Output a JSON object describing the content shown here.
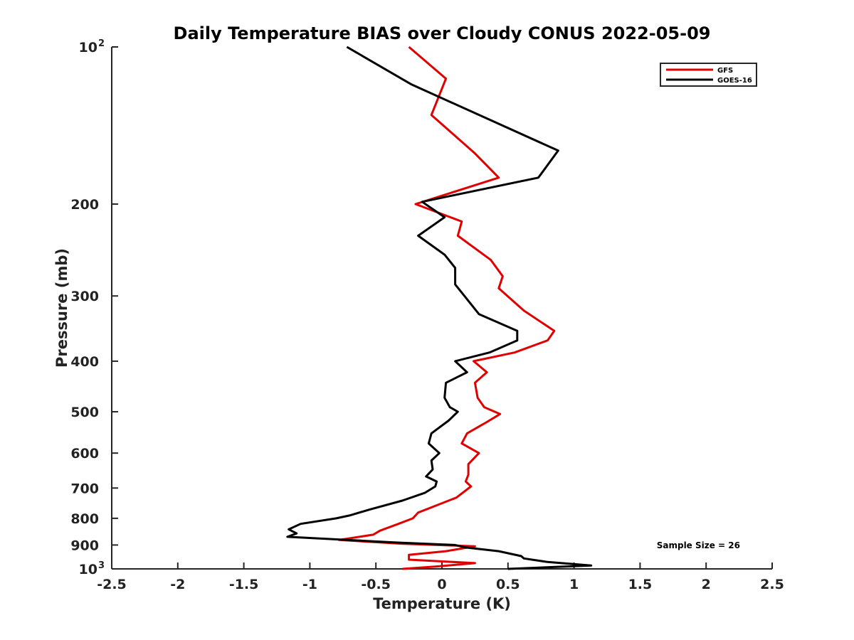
{
  "chart_data": {
    "type": "line",
    "title": "Daily Temperature BIAS over Cloudy CONUS 2022-05-09",
    "xlabel": "Temperature (K)",
    "ylabel": "Pressure (mb)",
    "xlim": [
      -2.5,
      2.5
    ],
    "ylim": [
      100,
      1000
    ],
    "yscale": "log",
    "yreverse": true,
    "grid": false,
    "legend_position": "top-right",
    "x_ticks": [
      "-2.5",
      "-2",
      "-1.5",
      "-1",
      "-0.5",
      "0",
      "0.5",
      "1",
      "1.5",
      "2",
      "2.5"
    ],
    "y_ticks": [
      {
        "value": 100,
        "label": "10",
        "sup": "2"
      },
      {
        "value": 200,
        "label": "200"
      },
      {
        "value": 300,
        "label": "300"
      },
      {
        "value": 400,
        "label": "400"
      },
      {
        "value": 500,
        "label": "500"
      },
      {
        "value": 600,
        "label": "600"
      },
      {
        "value": 700,
        "label": "700"
      },
      {
        "value": 800,
        "label": "800"
      },
      {
        "value": 900,
        "label": "900"
      },
      {
        "value": 1000,
        "label": "10",
        "sup": "3"
      }
    ],
    "annotation": "Sample Size = 26",
    "series": [
      {
        "name": "GFS",
        "color": "#e00000",
        "points": [
          [
            -0.25,
            100
          ],
          [
            0.03,
            115
          ],
          [
            -0.08,
            135
          ],
          [
            0.25,
            160
          ],
          [
            0.43,
            178
          ],
          [
            -0.2,
            200
          ],
          [
            0.15,
            216
          ],
          [
            0.12,
            230
          ],
          [
            0.37,
            256
          ],
          [
            0.46,
            275
          ],
          [
            0.43,
            290
          ],
          [
            0.62,
            320
          ],
          [
            0.85,
            350
          ],
          [
            0.8,
            365
          ],
          [
            0.55,
            385
          ],
          [
            0.24,
            400
          ],
          [
            0.34,
            420
          ],
          [
            0.25,
            440
          ],
          [
            0.27,
            470
          ],
          [
            0.32,
            490
          ],
          [
            0.44,
            505
          ],
          [
            0.33,
            525
          ],
          [
            0.19,
            550
          ],
          [
            0.15,
            575
          ],
          [
            0.28,
            600
          ],
          [
            0.2,
            630
          ],
          [
            0.2,
            660
          ],
          [
            0.18,
            680
          ],
          [
            0.22,
            695
          ],
          [
            0.11,
            730
          ],
          [
            -0.18,
            780
          ],
          [
            -0.22,
            800
          ],
          [
            -0.33,
            820
          ],
          [
            -0.47,
            845
          ],
          [
            -0.52,
            860
          ],
          [
            -0.78,
            880
          ],
          [
            -0.3,
            895
          ],
          [
            0.25,
            905
          ],
          [
            0.03,
            925
          ],
          [
            -0.25,
            940
          ],
          [
            -0.25,
            960
          ],
          [
            0.25,
            975
          ],
          [
            -0.05,
            990
          ],
          [
            -0.3,
            1000
          ]
        ]
      },
      {
        "name": "GOES-16",
        "color": "#000000",
        "points": [
          [
            -0.72,
            100
          ],
          [
            -0.23,
            118
          ],
          [
            0.88,
            158
          ],
          [
            0.73,
            178
          ],
          [
            -0.15,
            198
          ],
          [
            0.02,
            212
          ],
          [
            -0.18,
            230
          ],
          [
            0.02,
            250
          ],
          [
            0.1,
            265
          ],
          [
            0.1,
            285
          ],
          [
            0.28,
            325
          ],
          [
            0.57,
            350
          ],
          [
            0.57,
            365
          ],
          [
            0.36,
            385
          ],
          [
            0.1,
            400
          ],
          [
            0.19,
            420
          ],
          [
            0.03,
            440
          ],
          [
            0.02,
            470
          ],
          [
            0.06,
            490
          ],
          [
            0.12,
            500
          ],
          [
            0.05,
            520
          ],
          [
            -0.08,
            550
          ],
          [
            -0.1,
            575
          ],
          [
            -0.02,
            600
          ],
          [
            -0.08,
            620
          ],
          [
            -0.07,
            645
          ],
          [
            -0.12,
            665
          ],
          [
            -0.04,
            680
          ],
          [
            -0.05,
            695
          ],
          [
            -0.13,
            715
          ],
          [
            -0.3,
            740
          ],
          [
            -0.55,
            770
          ],
          [
            -0.7,
            790
          ],
          [
            -0.8,
            800
          ],
          [
            -1.07,
            820
          ],
          [
            -1.16,
            840
          ],
          [
            -1.1,
            855
          ],
          [
            -1.17,
            868
          ],
          [
            -0.35,
            890
          ],
          [
            0.1,
            900
          ],
          [
            0.18,
            910
          ],
          [
            0.43,
            925
          ],
          [
            0.6,
            945
          ],
          [
            0.62,
            955
          ],
          [
            0.8,
            970
          ],
          [
            1.13,
            985
          ],
          [
            0.5,
            1000
          ]
        ]
      }
    ]
  }
}
